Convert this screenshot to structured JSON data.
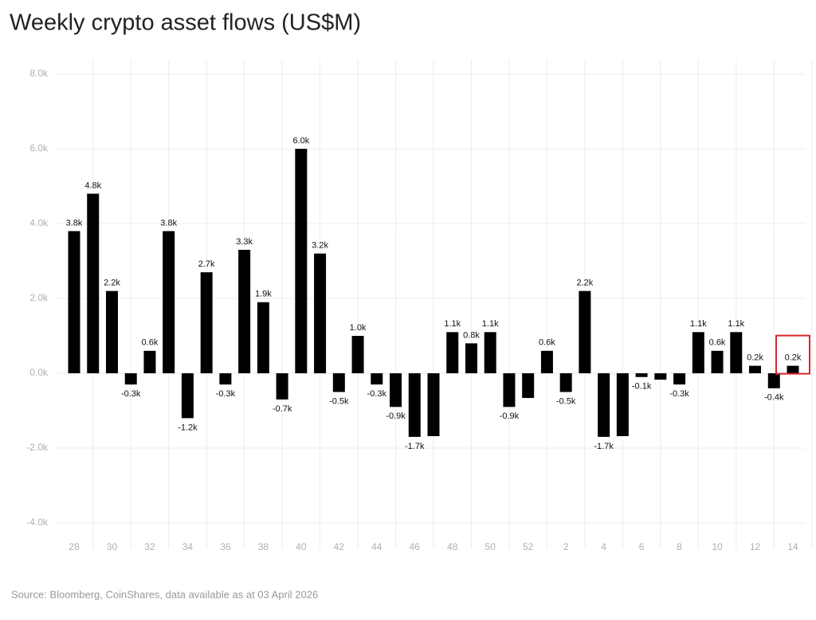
{
  "chart_data": {
    "type": "bar",
    "title": "Weekly crypto asset flows (US$M)",
    "source": "Source: Bloomberg, CoinShares, data available as at 03 April 2026",
    "categories": [
      "28",
      null,
      "30",
      null,
      "32",
      null,
      "34",
      null,
      "36",
      null,
      "38",
      null,
      "40",
      null,
      "42",
      null,
      "44",
      null,
      "46",
      null,
      "48",
      null,
      "50",
      null,
      "52",
      null,
      "2",
      null,
      "4",
      null,
      "6",
      null,
      "8",
      null,
      "10",
      null,
      "12",
      null,
      "14"
    ],
    "values": [
      3800,
      4800,
      2200,
      -300,
      600,
      3800,
      -1200,
      2700,
      -300,
      3300,
      1900,
      -700,
      6000,
      3200,
      -500,
      1000,
      -300,
      -900,
      -1700,
      -1680,
      1100,
      800,
      1100,
      -900,
      -660,
      600,
      -500,
      2200,
      -1700,
      -1680,
      -100,
      -170,
      -300,
      1100,
      600,
      1100,
      200,
      -400,
      200
    ],
    "value_labels": [
      "3.8k",
      "4.8k",
      "2.2k",
      "-0.3k",
      "0.6k",
      "3.8k",
      "-1.2k",
      "2.7k",
      "-0.3k",
      "3.3k",
      "1.9k",
      "-0.7k",
      "6.0k",
      "3.2k",
      "-0.5k",
      "1.0k",
      "-0.3k",
      "-0.9k",
      "-1.7k",
      null,
      "1.1k",
      "0.8k",
      "1.1k",
      "-0.9k",
      null,
      "0.6k",
      "-0.5k",
      "2.2k",
      "-1.7k",
      null,
      "-0.1k",
      null,
      "-0.3k",
      "1.1k",
      "0.6k",
      "1.1k",
      "0.2k",
      "-0.4k",
      "0.2k"
    ],
    "color": "#000000",
    "highlight_color": "#d9262b",
    "ylim": [
      -4000,
      8000
    ],
    "yticks": [
      {
        "value": -4000,
        "label": "-4.0k"
      },
      {
        "value": -2000,
        "label": "-2.0k"
      },
      {
        "value": 0,
        "label": "0.0k"
      },
      {
        "value": 2000,
        "label": "2.0k"
      },
      {
        "value": 4000,
        "label": "4.0k"
      },
      {
        "value": 6000,
        "label": "6.0k"
      },
      {
        "value": 8000,
        "label": "8.0k"
      }
    ],
    "grid": true
  }
}
